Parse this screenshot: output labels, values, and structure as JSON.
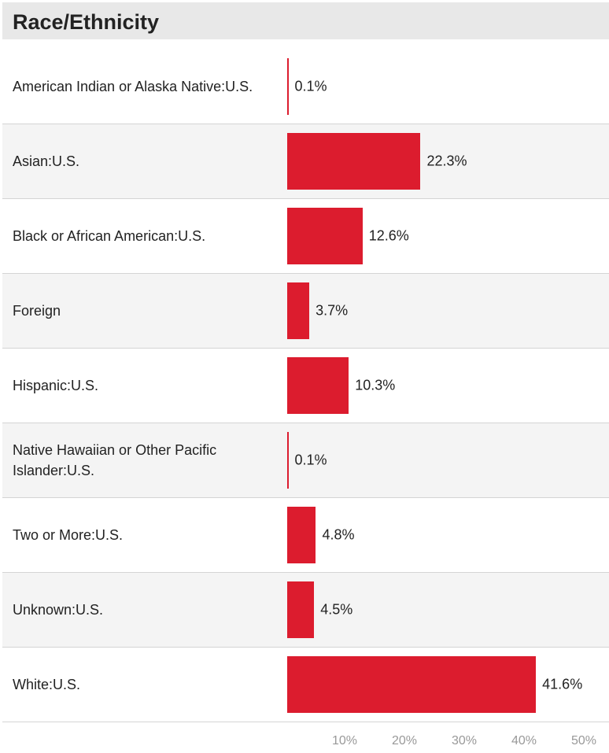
{
  "chart_data": {
    "type": "bar",
    "orientation": "horizontal",
    "title": "Race/Ethnicity",
    "categories": [
      "American Indian or Alaska Native:U.S.",
      "Asian:U.S.",
      "Black or African American:U.S.",
      "Foreign",
      "Hispanic:U.S.",
      "Native Hawaiian or Other Pacific Islander:U.S.",
      "Two or More:U.S.",
      "Unknown:U.S.",
      "White:U.S."
    ],
    "values": [
      0.1,
      22.3,
      12.6,
      3.7,
      10.3,
      0.1,
      4.8,
      4.5,
      41.6
    ],
    "value_labels": [
      "0.1%",
      "22.3%",
      "12.6%",
      "3.7%",
      "10.3%",
      "0.1%",
      "4.8%",
      "4.5%",
      "41.6%"
    ],
    "color": "#dc1c2e",
    "xlim": [
      0,
      50
    ],
    "xticks": [
      {
        "value": 10,
        "label": "10%"
      },
      {
        "value": 20,
        "label": "20%"
      },
      {
        "value": 30,
        "label": "30%"
      },
      {
        "value": 40,
        "label": "40%"
      },
      {
        "value": 50,
        "label": "50%"
      }
    ]
  }
}
